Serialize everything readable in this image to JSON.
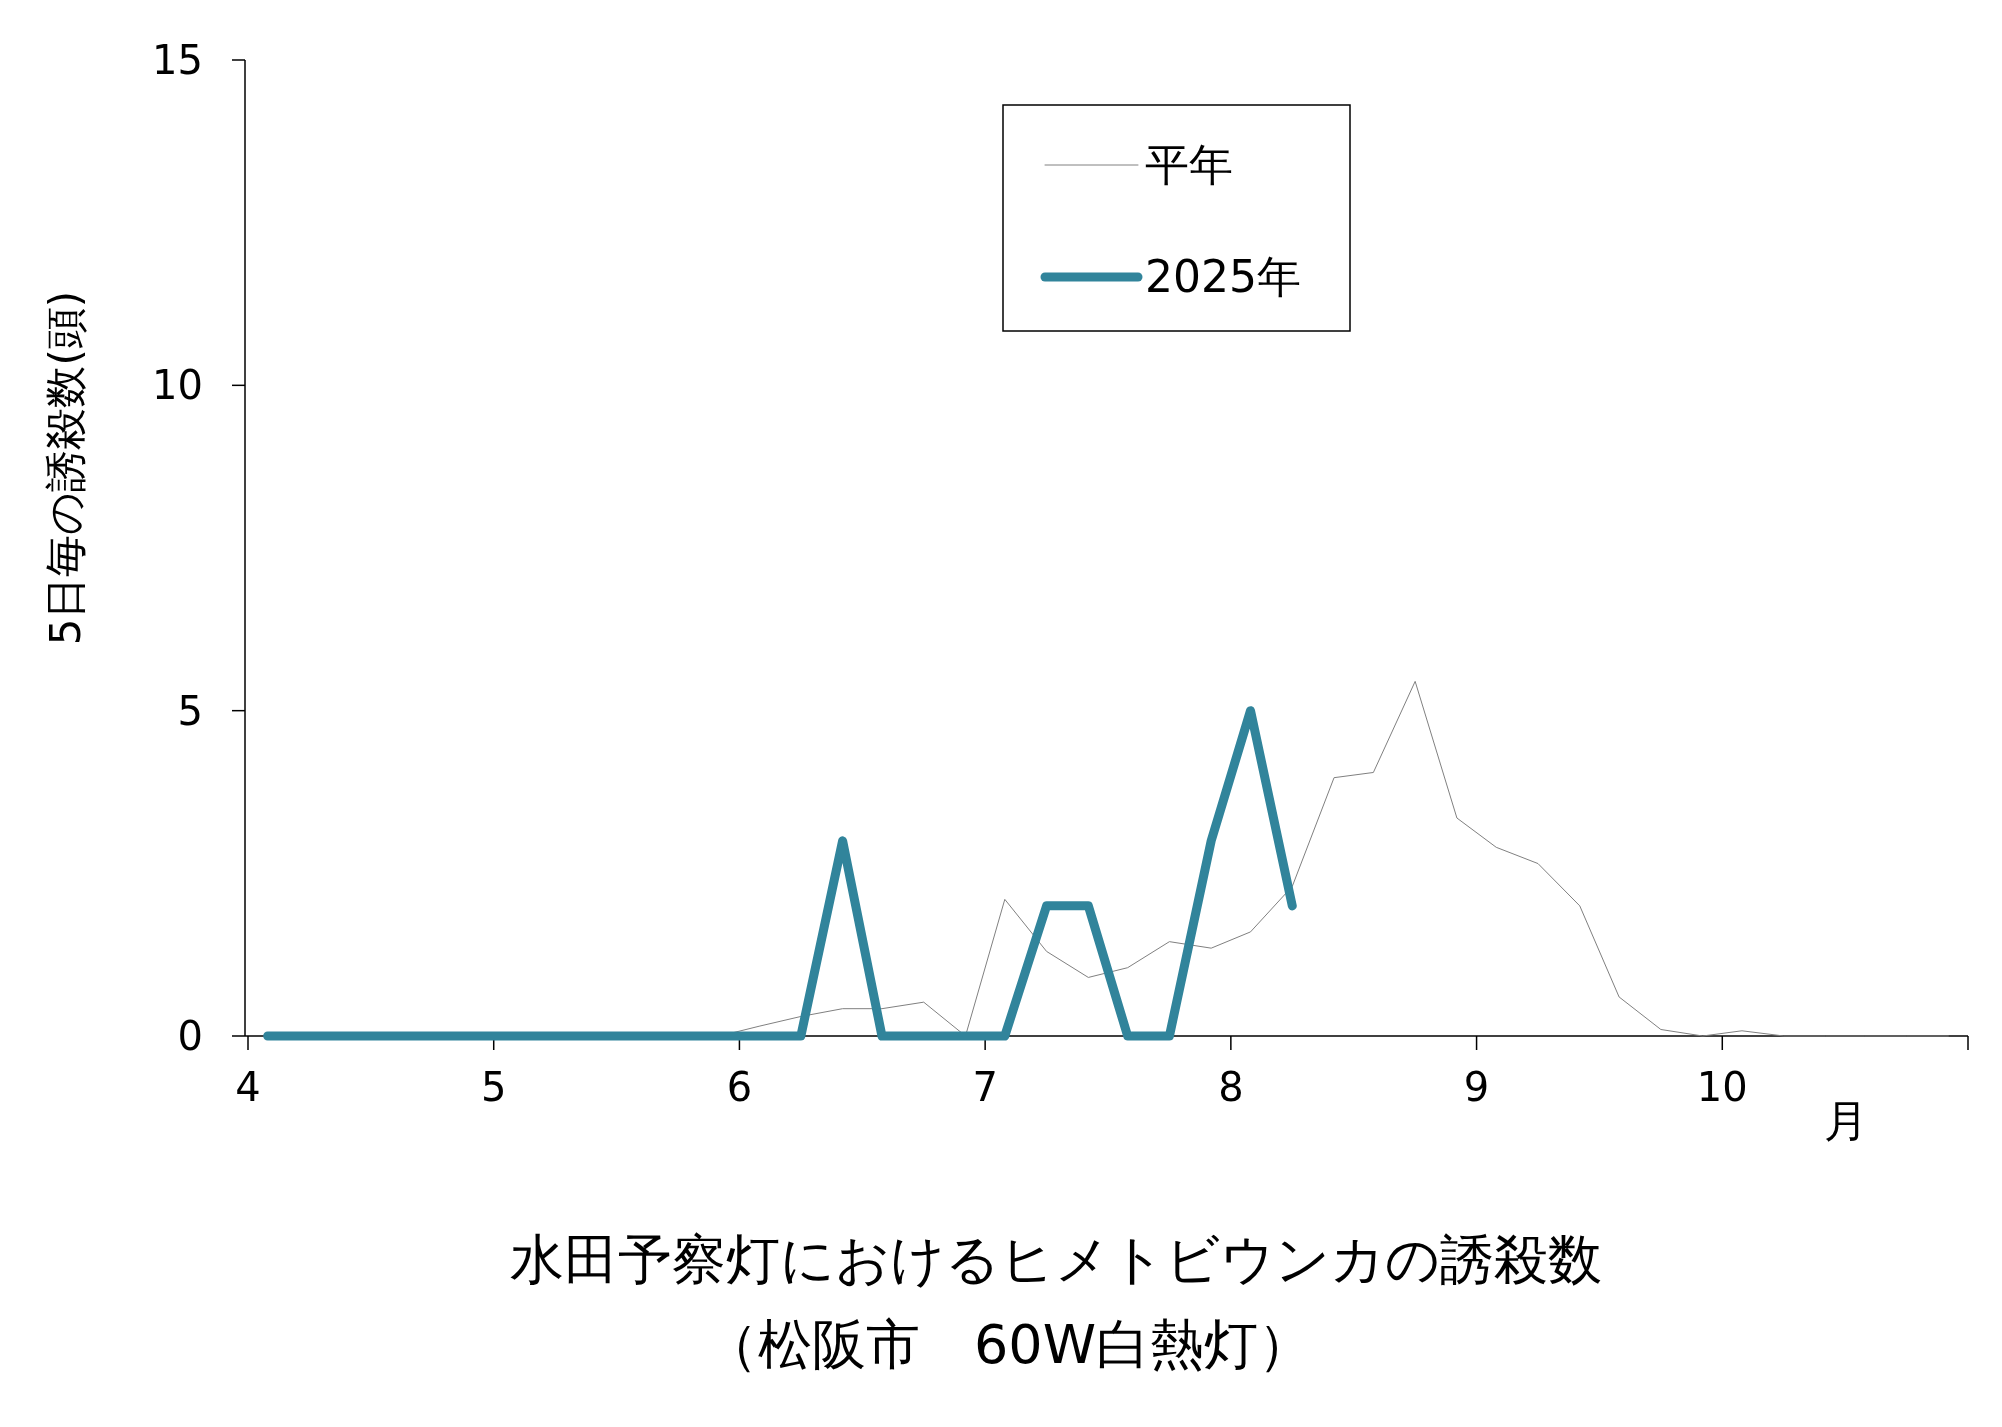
{
  "chart_data": {
    "type": "line",
    "title": "水田予察灯におけるヒメトビウンカの誘殺数",
    "subtitle": "（松阪市　60W白熱灯）",
    "xlabel": "月",
    "ylabel": "5日毎の誘殺数(頭)",
    "xlim": [
      4,
      11
    ],
    "xticks": [
      4,
      5,
      6,
      7,
      8,
      9,
      10
    ],
    "ylim": [
      0,
      15
    ],
    "yticks": [
      0,
      5,
      10,
      15
    ],
    "grid": false,
    "legend": "top right",
    "marker": "none",
    "line_style": "solid",
    "series": [
      {
        "name": "平年",
        "color": "#808080",
        "x": [
          5.75,
          5.92,
          6.08,
          6.25,
          6.42,
          6.58,
          6.75,
          6.92,
          7.08,
          7.25,
          7.42,
          7.58,
          7.75,
          7.92,
          8.08,
          8.25,
          8.42,
          8.58,
          8.75,
          8.92,
          9.08,
          9.25,
          9.42,
          9.58,
          9.75,
          9.92,
          10.08,
          10.25,
          10.42,
          10.58,
          10.75,
          10.92
        ],
        "values": [
          0,
          0,
          0.15,
          0.3,
          0.42,
          0.42,
          0.52,
          0,
          2.1,
          1.3,
          0.9,
          1.05,
          1.45,
          1.35,
          1.6,
          2.3,
          3.97,
          4.05,
          5.45,
          3.35,
          2.9,
          2.65,
          2,
          0.6,
          0.1,
          0,
          0.08,
          0,
          0,
          0,
          0,
          0
        ]
      },
      {
        "name": "2025年",
        "color": "#31849b",
        "x": [
          4.08,
          4.25,
          4.42,
          4.58,
          4.75,
          4.92,
          5.08,
          5.25,
          5.42,
          5.58,
          5.75,
          5.92,
          6.08,
          6.25,
          6.42,
          6.58,
          6.75,
          6.92,
          7.08,
          7.25,
          7.42,
          7.58,
          7.75,
          7.92,
          8.08,
          8.25
        ],
        "values": [
          0,
          0,
          0,
          0,
          0,
          0,
          0,
          0,
          0,
          0,
          0,
          0,
          0,
          0,
          3,
          0,
          0,
          0,
          0,
          2,
          2,
          0,
          0,
          3,
          5,
          2
        ]
      }
    ]
  }
}
